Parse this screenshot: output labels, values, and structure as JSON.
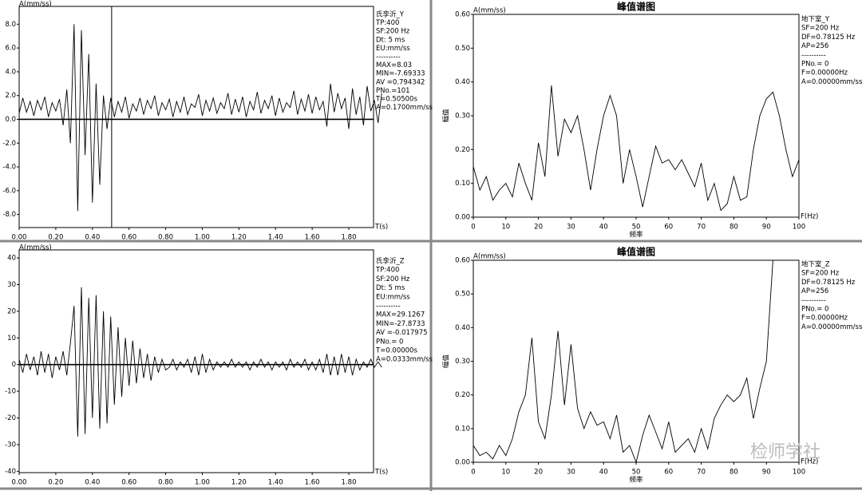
{
  "chart_data": [
    {
      "type": "line",
      "ylabel": "A(mm/ss)",
      "xlabel": "T(s)",
      "color": "#000000",
      "info": [
        "氏孪沂_Y",
        "TP:400",
        "SF:200 Hz",
        "Dt: 5 ms",
        "EU:mm/ss",
        "----------",
        "MAX=8.03",
        "MIN=-7.69333",
        "AV =0.794342",
        "PNo.=101",
        "T=0.50500s",
        "A=0.1700mm/ss"
      ],
      "cursor": 0.505,
      "xlim": [
        0,
        1.935
      ],
      "ylim": [
        -9.1,
        9.5
      ],
      "xticks": [
        {
          "value": 0,
          "label": "0.00"
        },
        {
          "value": 0.2,
          "label": "0.20"
        },
        {
          "value": 0.4,
          "label": "0.40"
        },
        {
          "value": 0.6,
          "label": "0.60"
        },
        {
          "value": 0.8,
          "label": "0.80"
        },
        {
          "value": 1.0,
          "label": "1.00"
        },
        {
          "value": 1.2,
          "label": "1.20"
        },
        {
          "value": 1.4,
          "label": "1.40"
        },
        {
          "value": 1.6,
          "label": "1.60"
        },
        {
          "value": 1.8,
          "label": "1.80"
        }
      ],
      "yticks": [
        {
          "value": 8,
          "label": "8.0"
        },
        {
          "value": 6,
          "label": "6.0"
        },
        {
          "value": 4,
          "label": "4.0"
        },
        {
          "value": 2,
          "label": "2.0"
        },
        {
          "value": 0,
          "label": "0.0"
        },
        {
          "value": -2,
          "label": "-2.0"
        },
        {
          "value": -4,
          "label": "-4.0"
        },
        {
          "value": -6,
          "label": "-6.0"
        },
        {
          "value": -8,
          "label": "-8.0"
        }
      ],
      "x": [
        0,
        0.02,
        0.04,
        0.06,
        0.08,
        0.1,
        0.12,
        0.14,
        0.16,
        0.18,
        0.2,
        0.22,
        0.24,
        0.26,
        0.28,
        0.3,
        0.32,
        0.34,
        0.36,
        0.38,
        0.4,
        0.42,
        0.44,
        0.46,
        0.48,
        0.5,
        0.52,
        0.54,
        0.56,
        0.58,
        0.6,
        0.62,
        0.64,
        0.66,
        0.68,
        0.7,
        0.72,
        0.74,
        0.76,
        0.78,
        0.8,
        0.82,
        0.84,
        0.86,
        0.88,
        0.9,
        0.92,
        0.94,
        0.96,
        0.98,
        1.0,
        1.02,
        1.04,
        1.06,
        1.08,
        1.1,
        1.12,
        1.14,
        1.16,
        1.18,
        1.2,
        1.22,
        1.24,
        1.26,
        1.28,
        1.3,
        1.32,
        1.34,
        1.36,
        1.38,
        1.4,
        1.42,
        1.44,
        1.46,
        1.48,
        1.5,
        1.52,
        1.54,
        1.56,
        1.58,
        1.6,
        1.62,
        1.64,
        1.66,
        1.68,
        1.7,
        1.72,
        1.74,
        1.76,
        1.78,
        1.8,
        1.82,
        1.84,
        1.86,
        1.88,
        1.9,
        1.92,
        1.94,
        1.96,
        1.98
      ],
      "values": [
        0.5,
        1.8,
        0.6,
        1.5,
        0.3,
        1.6,
        0.8,
        1.9,
        0.2,
        1.4,
        0.7,
        1.7,
        -0.5,
        2.5,
        -2.0,
        8.0,
        -7.7,
        7.5,
        -3.0,
        5.5,
        -7.0,
        3.0,
        -5.5,
        2.0,
        -0.8,
        1.8,
        0.2,
        1.5,
        0.6,
        1.9,
        0.1,
        1.3,
        0.7,
        1.8,
        0.4,
        1.6,
        0.9,
        2.0,
        0.3,
        1.4,
        0.8,
        1.7,
        0.2,
        1.5,
        0.6,
        1.9,
        0.4,
        1.3,
        1.0,
        2.1,
        0.3,
        1.6,
        0.7,
        1.8,
        0.5,
        1.4,
        0.9,
        2.2,
        0.4,
        1.7,
        0.6,
        1.9,
        0.2,
        1.5,
        0.8,
        2.3,
        0.5,
        1.6,
        0.9,
        2.0,
        0.3,
        1.8,
        0.6,
        1.4,
        1.0,
        2.4,
        0.4,
        1.7,
        0.7,
        2.1,
        0.5,
        1.9,
        0.8,
        1.5,
        -0.6,
        3.0,
        0.6,
        2.2,
        0.9,
        1.8,
        -0.8,
        2.6,
        0.4,
        1.9,
        -0.5,
        2.8,
        0.7,
        1.6,
        -0.3,
        2.2
      ]
    },
    {
      "type": "line",
      "title": "峰值谱图",
      "y_unit_label": "A(mm/ss)",
      "ylabel": "幅值",
      "xlabel": "频率",
      "x_unit_label": "F(Hz)",
      "color": "#000000",
      "info": [
        "地下室_Y",
        "SF=200 Hz",
        "DF=0.78125 Hz",
        "AP=256",
        "----------",
        "PNo.= 0",
        "F=0.00000Hz",
        "A=0.00000mm/ss"
      ],
      "xlim": [
        0,
        100
      ],
      "ylim": [
        0,
        0.6
      ],
      "xticks": [
        0,
        10,
        20,
        30,
        40,
        50,
        60,
        70,
        80,
        90,
        100
      ],
      "yticks": [
        {
          "value": 0,
          "label": "0.00"
        },
        {
          "value": 0.1,
          "label": "0.10"
        },
        {
          "value": 0.2,
          "label": "0.20"
        },
        {
          "value": 0.3,
          "label": "0.30"
        },
        {
          "value": 0.4,
          "label": "0.40"
        },
        {
          "value": 0.5,
          "label": "0.50"
        },
        {
          "value": 0.6,
          "label": "0.60"
        }
      ],
      "x": [
        0,
        2,
        4,
        6,
        8,
        10,
        12,
        14,
        16,
        18,
        20,
        22,
        24,
        26,
        28,
        30,
        32,
        34,
        36,
        38,
        40,
        42,
        44,
        46,
        48,
        50,
        52,
        54,
        56,
        58,
        60,
        62,
        64,
        66,
        68,
        70,
        72,
        74,
        76,
        78,
        80,
        82,
        84,
        86,
        88,
        90,
        92,
        94,
        96,
        98,
        100
      ],
      "values": [
        0.15,
        0.08,
        0.12,
        0.05,
        0.08,
        0.1,
        0.06,
        0.16,
        0.1,
        0.05,
        0.22,
        0.12,
        0.39,
        0.18,
        0.29,
        0.25,
        0.3,
        0.2,
        0.08,
        0.2,
        0.3,
        0.36,
        0.3,
        0.1,
        0.2,
        0.12,
        0.03,
        0.12,
        0.21,
        0.16,
        0.17,
        0.14,
        0.17,
        0.13,
        0.09,
        0.16,
        0.05,
        0.1,
        0.02,
        0.04,
        0.12,
        0.05,
        0.06,
        0.2,
        0.3,
        0.35,
        0.37,
        0.3,
        0.2,
        0.12,
        0.17
      ]
    },
    {
      "type": "line",
      "ylabel": "A(mm/ss)",
      "xlabel": "T(s)",
      "color": "#000000",
      "info": [
        "氏孪沂_Z",
        "TP:400",
        "SF:200 Hz",
        "Dt: 5 ms",
        "EU:mm/ss",
        "----------",
        "MAX=29.1267",
        "MIN=-27.8733",
        "AV =-0.017975",
        "PNo.= 0",
        "T=0.00000s",
        "A=0.0333mm/ss"
      ],
      "xlim": [
        0,
        1.935
      ],
      "ylim": [
        -40.5,
        43
      ],
      "xticks": [
        {
          "value": 0,
          "label": "0.00"
        },
        {
          "value": 0.2,
          "label": "0.20"
        },
        {
          "value": 0.4,
          "label": "0.40"
        },
        {
          "value": 0.6,
          "label": "0.60"
        },
        {
          "value": 0.8,
          "label": "0.80"
        },
        {
          "value": 1.0,
          "label": "1.00"
        },
        {
          "value": 1.2,
          "label": "1.20"
        },
        {
          "value": 1.4,
          "label": "1.40"
        },
        {
          "value": 1.6,
          "label": "1.60"
        },
        {
          "value": 1.8,
          "label": "1.80"
        }
      ],
      "yticks": [
        40,
        30,
        20,
        10,
        0,
        -10,
        -20,
        -30,
        -40
      ],
      "x": [
        0,
        0.02,
        0.04,
        0.06,
        0.08,
        0.1,
        0.12,
        0.14,
        0.16,
        0.18,
        0.2,
        0.22,
        0.24,
        0.26,
        0.28,
        0.3,
        0.32,
        0.34,
        0.36,
        0.38,
        0.4,
        0.42,
        0.44,
        0.46,
        0.48,
        0.5,
        0.52,
        0.54,
        0.56,
        0.58,
        0.6,
        0.62,
        0.64,
        0.66,
        0.68,
        0.7,
        0.72,
        0.74,
        0.76,
        0.78,
        0.8,
        0.82,
        0.84,
        0.86,
        0.88,
        0.9,
        0.92,
        0.94,
        0.96,
        0.98,
        1.0,
        1.02,
        1.04,
        1.06,
        1.08,
        1.1,
        1.12,
        1.14,
        1.16,
        1.18,
        1.2,
        1.22,
        1.24,
        1.26,
        1.28,
        1.3,
        1.32,
        1.34,
        1.36,
        1.38,
        1.4,
        1.42,
        1.44,
        1.46,
        1.48,
        1.5,
        1.52,
        1.54,
        1.56,
        1.58,
        1.6,
        1.62,
        1.64,
        1.66,
        1.68,
        1.7,
        1.72,
        1.74,
        1.76,
        1.78,
        1.8,
        1.82,
        1.84,
        1.86,
        1.88,
        1.9,
        1.92,
        1.94,
        1.96,
        1.98
      ],
      "values": [
        2,
        -3,
        4,
        -2,
        3,
        -4,
        5,
        -3,
        4,
        -5,
        3,
        -2,
        5,
        -4,
        8,
        22,
        -27,
        29,
        -26,
        25,
        -20,
        26,
        -24,
        20,
        -22,
        18,
        -15,
        14,
        -12,
        10,
        -8,
        9,
        -7,
        6,
        -5,
        4,
        -6,
        3,
        -3,
        2,
        -2,
        -1,
        2,
        -2,
        1,
        -1,
        2,
        -3,
        3,
        -4,
        4,
        -3,
        2,
        -2,
        1,
        -1,
        1,
        -1,
        2,
        -1,
        1,
        -1,
        1,
        -2,
        1,
        -1,
        2,
        -1,
        1,
        -2,
        1,
        -1,
        1,
        -2,
        2,
        -1,
        1,
        -1,
        2,
        -2,
        1,
        -2,
        2,
        -3,
        4,
        -4,
        3,
        -4,
        4,
        -3,
        3,
        -4,
        2,
        -2,
        1,
        -1,
        2,
        -1,
        1,
        -1
      ]
    },
    {
      "type": "line",
      "title": "峰值谱图",
      "y_unit_label": "A(mm/ss)",
      "ylabel": "幅值",
      "xlabel": "频率",
      "x_unit_label": "F(Hz)",
      "color": "#000000",
      "info": [
        "地下室_Z",
        "SF=200 Hz",
        "DF=0.78125 Hz",
        "AP=256",
        "----------",
        "PNo.= 0",
        "F=0.00000Hz",
        "A=0.00000mm/ss"
      ],
      "xlim": [
        0,
        100
      ],
      "ylim": [
        0,
        0.6
      ],
      "xticks": [
        0,
        10,
        20,
        30,
        40,
        50,
        60,
        70,
        80,
        90,
        100
      ],
      "yticks": [
        {
          "value": 0,
          "label": "0.00"
        },
        {
          "value": 0.1,
          "label": "0.10"
        },
        {
          "value": 0.2,
          "label": "0.20"
        },
        {
          "value": 0.3,
          "label": "0.30"
        },
        {
          "value": 0.4,
          "label": "0.40"
        },
        {
          "value": 0.5,
          "label": "0.50"
        },
        {
          "value": 0.6,
          "label": "0.60"
        }
      ],
      "x": [
        0,
        2,
        4,
        6,
        8,
        10,
        12,
        14,
        16,
        18,
        20,
        22,
        24,
        26,
        28,
        30,
        32,
        34,
        36,
        38,
        40,
        42,
        44,
        46,
        48,
        50,
        52,
        54,
        56,
        58,
        60,
        62,
        64,
        66,
        68,
        70,
        72,
        74,
        76,
        78,
        80,
        82,
        84,
        86,
        88,
        90,
        92,
        94,
        96,
        98,
        100
      ],
      "values": [
        0.05,
        0.02,
        0.03,
        0.01,
        0.05,
        0.02,
        0.07,
        0.15,
        0.2,
        0.37,
        0.12,
        0.07,
        0.2,
        0.39,
        0.17,
        0.35,
        0.16,
        0.1,
        0.15,
        0.11,
        0.12,
        0.07,
        0.14,
        0.03,
        0.05,
        0.0,
        0.08,
        0.14,
        0.09,
        0.04,
        0.12,
        0.03,
        0.05,
        0.07,
        0.03,
        0.1,
        0.04,
        0.13,
        0.17,
        0.2,
        0.18,
        0.2,
        0.25,
        0.13,
        0.22,
        0.3,
        0.6,
        0.6,
        0.6,
        0.6,
        0.6
      ]
    }
  ],
  "watermark": "检师学社"
}
